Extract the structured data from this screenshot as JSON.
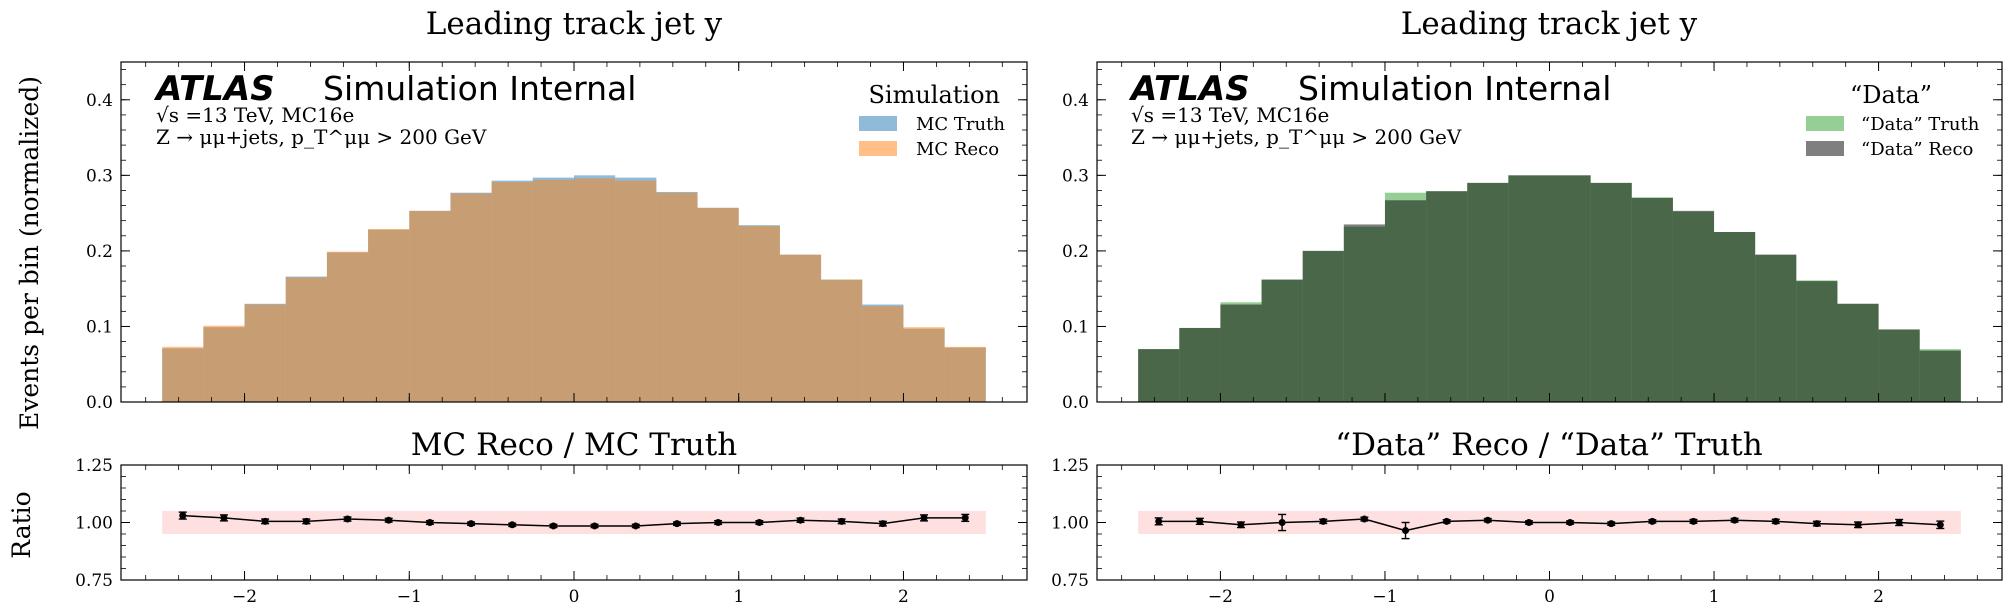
{
  "y_axis_label_top": "Events per bin (normalized)",
  "y_axis_label_ratio": "Ratio",
  "chart_data": [
    {
      "type": "histogram",
      "title": "Leading track jet y",
      "atlas_label": "ATLAS",
      "atlas_sub": "Simulation Internal",
      "info_line1": "√s =13 TeV, MC16e",
      "info_line2": "Z → μμ+jets, p_T^μμ > 200 GeV",
      "legend_title": "Simulation",
      "ylim": [
        0,
        0.45
      ],
      "yticks": [
        "0.0",
        "0.1",
        "0.2",
        "0.3",
        "0.4"
      ],
      "bin_edges": [
        -2.5,
        -2.25,
        -2.0,
        -1.75,
        -1.5,
        -1.25,
        -1.0,
        -0.75,
        -0.5,
        -0.25,
        0.0,
        0.25,
        0.5,
        0.75,
        1.0,
        1.25,
        1.5,
        1.75,
        2.0,
        2.25,
        2.5
      ],
      "series": [
        {
          "name": "MC Truth",
          "color": "#1f77b4",
          "values": [
            0.071,
            0.099,
            0.13,
            0.166,
            0.198,
            0.228,
            0.253,
            0.277,
            0.293,
            0.297,
            0.3,
            0.297,
            0.278,
            0.257,
            0.234,
            0.195,
            0.162,
            0.129,
            0.097,
            0.072
          ]
        },
        {
          "name": "MC Reco",
          "color": "#ff7f0e",
          "values": [
            0.073,
            0.101,
            0.129,
            0.165,
            0.199,
            0.229,
            0.253,
            0.276,
            0.291,
            0.294,
            0.296,
            0.293,
            0.277,
            0.257,
            0.233,
            0.195,
            0.162,
            0.127,
            0.099,
            0.073
          ]
        }
      ],
      "ratio": {
        "title": "MC Reco / MC Truth",
        "ylim": [
          0.75,
          1.25
        ],
        "yticks": [
          "0.75",
          "1.00",
          "1.25"
        ],
        "band": [
          0.95,
          1.05
        ],
        "band_color": "#ffcccc",
        "values": [
          1.03,
          1.02,
          1.005,
          1.005,
          1.015,
          1.01,
          1.0,
          0.995,
          0.99,
          0.985,
          0.985,
          0.985,
          0.995,
          1.0,
          1.0,
          1.01,
          1.005,
          0.995,
          1.02,
          1.02
        ],
        "errors": [
          0.015,
          0.013,
          0.01,
          0.01,
          0.009,
          0.008,
          0.008,
          0.007,
          0.007,
          0.007,
          0.007,
          0.007,
          0.007,
          0.008,
          0.008,
          0.009,
          0.01,
          0.01,
          0.013,
          0.015
        ]
      }
    },
    {
      "type": "histogram",
      "title": "Leading track jet y",
      "atlas_label": "ATLAS",
      "atlas_sub": "Simulation Internal",
      "info_line1": "√s =13 TeV, MC16e",
      "info_line2": "Z → μμ+jets, p_T^μμ > 200 GeV",
      "legend_title": "“Data”",
      "ylim": [
        0,
        0.45
      ],
      "yticks": [
        "0.0",
        "0.1",
        "0.2",
        "0.3",
        "0.4"
      ],
      "bin_edges": [
        -2.5,
        -2.25,
        -2.0,
        -1.75,
        -1.5,
        -1.25,
        -1.0,
        -0.75,
        -0.5,
        -0.25,
        0.0,
        0.25,
        0.5,
        0.75,
        1.0,
        1.25,
        1.5,
        1.75,
        2.0,
        2.25,
        2.5
      ],
      "series": [
        {
          "name": "“Data” Truth",
          "color": "#2ca02c",
          "values": [
            0.07,
            0.098,
            0.132,
            0.162,
            0.2,
            0.232,
            0.277,
            0.279,
            0.29,
            0.3,
            0.3,
            0.29,
            0.271,
            0.252,
            0.225,
            0.195,
            0.161,
            0.13,
            0.096,
            0.07
          ]
        },
        {
          "name": "“Data” Reco",
          "color": "#000000",
          "values": [
            0.07,
            0.098,
            0.129,
            0.162,
            0.2,
            0.235,
            0.267,
            0.279,
            0.29,
            0.3,
            0.3,
            0.29,
            0.27,
            0.253,
            0.225,
            0.195,
            0.16,
            0.13,
            0.096,
            0.068
          ]
        }
      ],
      "ratio": {
        "title": "“Data” Reco / “Data” Truth",
        "ylim": [
          0.75,
          1.25
        ],
        "yticks": [
          "0.75",
          "1.00",
          "1.25"
        ],
        "band": [
          0.95,
          1.05
        ],
        "band_color": "#ffcccc",
        "values": [
          1.005,
          1.005,
          0.99,
          1.0,
          1.005,
          1.015,
          0.965,
          1.005,
          1.01,
          1.0,
          1.0,
          0.995,
          1.005,
          1.005,
          1.01,
          1.005,
          0.995,
          0.99,
          1.0,
          0.99
        ],
        "errors": [
          0.015,
          0.013,
          0.012,
          0.035,
          0.009,
          0.008,
          0.035,
          0.007,
          0.007,
          0.007,
          0.007,
          0.007,
          0.007,
          0.008,
          0.008,
          0.009,
          0.01,
          0.012,
          0.013,
          0.016
        ]
      }
    }
  ],
  "xticks": [
    "−2",
    "−1",
    "0",
    "1",
    "2"
  ],
  "xtick_values": [
    -2,
    -1,
    0,
    1,
    2
  ],
  "xlim": [
    -2.75,
    2.75
  ]
}
